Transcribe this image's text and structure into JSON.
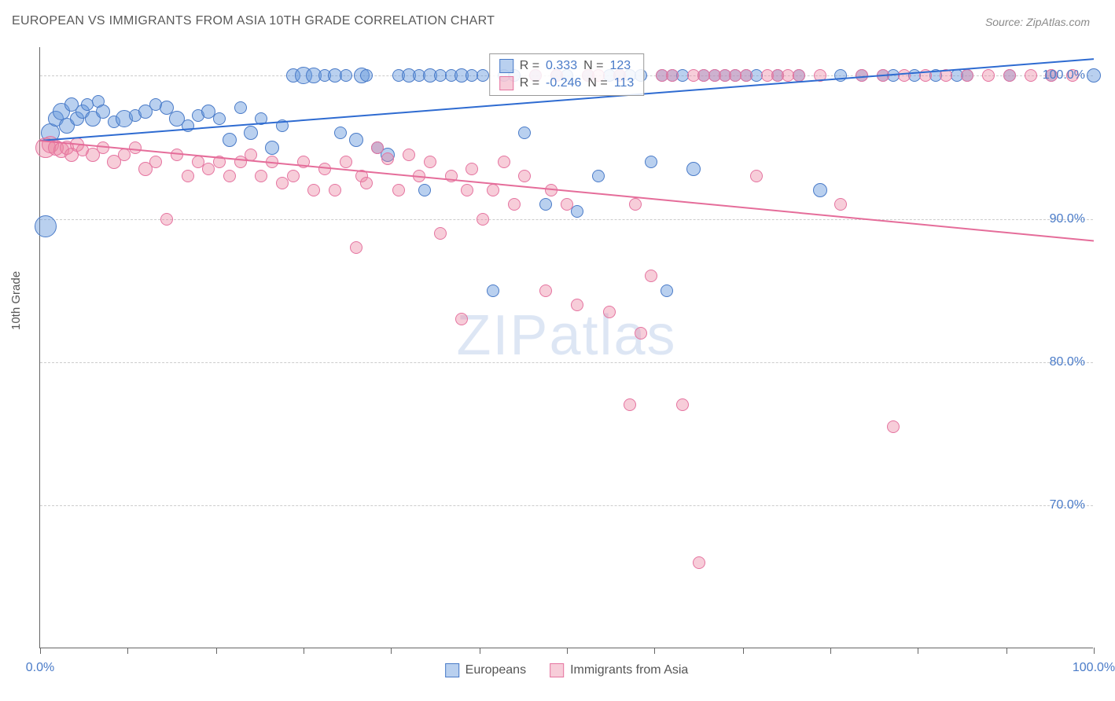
{
  "title": "EUROPEAN VS IMMIGRANTS FROM ASIA 10TH GRADE CORRELATION CHART",
  "source": "Source: ZipAtlas.com",
  "ylabel": "10th Grade",
  "watermark_zip": "ZIP",
  "watermark_atlas": "atlas",
  "chart": {
    "type": "scatter",
    "background_color": "#ffffff",
    "grid_color": "#cccccc",
    "axis_color": "#666666",
    "xlim": [
      0,
      100
    ],
    "ylim": [
      60,
      102
    ],
    "xticks": [
      0,
      8.3,
      16.7,
      25,
      33.3,
      41.7,
      50,
      58.3,
      66.7,
      75,
      83.3,
      91.7,
      100
    ],
    "xtick_labels": {
      "0": "0.0%",
      "100": "100.0%"
    },
    "yticks": [
      {
        "v": 100,
        "label": "100.0%"
      },
      {
        "v": 90,
        "label": "90.0%"
      },
      {
        "v": 80,
        "label": "80.0%"
      },
      {
        "v": 70,
        "label": "70.0%"
      }
    ],
    "series": [
      {
        "name": "Europeans",
        "fill": "rgba(100,150,220,0.45)",
        "stroke": "#4a7bc8",
        "trend_color": "#2e6bd1",
        "R_label": "R =",
        "R": "0.333",
        "N_label": "N =",
        "N": "123",
        "trend": {
          "x1": 0,
          "y1": 95.5,
          "x2": 100,
          "y2": 101.2
        },
        "points": [
          {
            "x": 0.5,
            "y": 89.5,
            "r": 14
          },
          {
            "x": 1,
            "y": 96,
            "r": 12
          },
          {
            "x": 1.5,
            "y": 97,
            "r": 10
          },
          {
            "x": 2,
            "y": 97.5,
            "r": 11
          },
          {
            "x": 2.5,
            "y": 96.5,
            "r": 10
          },
          {
            "x": 3,
            "y": 98,
            "r": 9
          },
          {
            "x": 3.5,
            "y": 97,
            "r": 9
          },
          {
            "x": 4,
            "y": 97.5,
            "r": 9
          },
          {
            "x": 4.5,
            "y": 98,
            "r": 8
          },
          {
            "x": 5,
            "y": 97,
            "r": 10
          },
          {
            "x": 5.5,
            "y": 98.2,
            "r": 8
          },
          {
            "x": 6,
            "y": 97.5,
            "r": 9
          },
          {
            "x": 7,
            "y": 96.8,
            "r": 8
          },
          {
            "x": 8,
            "y": 97,
            "r": 11
          },
          {
            "x": 9,
            "y": 97.2,
            "r": 8
          },
          {
            "x": 10,
            "y": 97.5,
            "r": 9
          },
          {
            "x": 11,
            "y": 98,
            "r": 8
          },
          {
            "x": 12,
            "y": 97.8,
            "r": 9
          },
          {
            "x": 13,
            "y": 97,
            "r": 10
          },
          {
            "x": 14,
            "y": 96.5,
            "r": 8
          },
          {
            "x": 15,
            "y": 97.2,
            "r": 8
          },
          {
            "x": 16,
            "y": 97.5,
            "r": 9
          },
          {
            "x": 17,
            "y": 97,
            "r": 8
          },
          {
            "x": 18,
            "y": 95.5,
            "r": 9
          },
          {
            "x": 19,
            "y": 97.8,
            "r": 8
          },
          {
            "x": 20,
            "y": 96,
            "r": 9
          },
          {
            "x": 21,
            "y": 97,
            "r": 8
          },
          {
            "x": 22,
            "y": 95,
            "r": 9
          },
          {
            "x": 23,
            "y": 96.5,
            "r": 8
          },
          {
            "x": 24,
            "y": 100,
            "r": 9
          },
          {
            "x": 25,
            "y": 100,
            "r": 11
          },
          {
            "x": 26,
            "y": 100,
            "r": 10
          },
          {
            "x": 27,
            "y": 100,
            "r": 8
          },
          {
            "x": 28,
            "y": 100,
            "r": 9
          },
          {
            "x": 28.5,
            "y": 96,
            "r": 8
          },
          {
            "x": 29,
            "y": 100,
            "r": 8
          },
          {
            "x": 30,
            "y": 95.5,
            "r": 9
          },
          {
            "x": 30.5,
            "y": 100,
            "r": 10
          },
          {
            "x": 31,
            "y": 100,
            "r": 8
          },
          {
            "x": 32,
            "y": 95,
            "r": 8
          },
          {
            "x": 33,
            "y": 94.5,
            "r": 9
          },
          {
            "x": 34,
            "y": 100,
            "r": 8
          },
          {
            "x": 35,
            "y": 100,
            "r": 9
          },
          {
            "x": 36,
            "y": 100,
            "r": 8
          },
          {
            "x": 36.5,
            "y": 92,
            "r": 8
          },
          {
            "x": 37,
            "y": 100,
            "r": 9
          },
          {
            "x": 38,
            "y": 100,
            "r": 8
          },
          {
            "x": 39,
            "y": 100,
            "r": 8
          },
          {
            "x": 40,
            "y": 100,
            "r": 9
          },
          {
            "x": 41,
            "y": 100,
            "r": 8
          },
          {
            "x": 42,
            "y": 100,
            "r": 8
          },
          {
            "x": 43,
            "y": 85,
            "r": 8
          },
          {
            "x": 44,
            "y": 100,
            "r": 8
          },
          {
            "x": 45,
            "y": 100,
            "r": 8
          },
          {
            "x": 46,
            "y": 96,
            "r": 8
          },
          {
            "x": 47,
            "y": 100,
            "r": 8
          },
          {
            "x": 48,
            "y": 91,
            "r": 8
          },
          {
            "x": 49,
            "y": 100,
            "r": 8
          },
          {
            "x": 50,
            "y": 100,
            "r": 8
          },
          {
            "x": 51,
            "y": 90.5,
            "r": 8
          },
          {
            "x": 52,
            "y": 100,
            "r": 8
          },
          {
            "x": 53,
            "y": 93,
            "r": 8
          },
          {
            "x": 54,
            "y": 100,
            "r": 8
          },
          {
            "x": 55,
            "y": 100,
            "r": 8
          },
          {
            "x": 56,
            "y": 100,
            "r": 8
          },
          {
            "x": 57,
            "y": 100,
            "r": 8
          },
          {
            "x": 58,
            "y": 94,
            "r": 8
          },
          {
            "x": 59,
            "y": 100,
            "r": 8
          },
          {
            "x": 59.5,
            "y": 85,
            "r": 8
          },
          {
            "x": 60,
            "y": 100,
            "r": 8
          },
          {
            "x": 61,
            "y": 100,
            "r": 8
          },
          {
            "x": 62,
            "y": 93.5,
            "r": 9
          },
          {
            "x": 63,
            "y": 100,
            "r": 8
          },
          {
            "x": 64,
            "y": 100,
            "r": 8
          },
          {
            "x": 65,
            "y": 100,
            "r": 8
          },
          {
            "x": 66,
            "y": 100,
            "r": 8
          },
          {
            "x": 67,
            "y": 100,
            "r": 8
          },
          {
            "x": 68,
            "y": 100,
            "r": 8
          },
          {
            "x": 70,
            "y": 100,
            "r": 8
          },
          {
            "x": 72,
            "y": 100,
            "r": 8
          },
          {
            "x": 74,
            "y": 92,
            "r": 9
          },
          {
            "x": 76,
            "y": 100,
            "r": 8
          },
          {
            "x": 78,
            "y": 100,
            "r": 8
          },
          {
            "x": 80,
            "y": 100,
            "r": 8
          },
          {
            "x": 81,
            "y": 100,
            "r": 8
          },
          {
            "x": 83,
            "y": 100,
            "r": 8
          },
          {
            "x": 85,
            "y": 100,
            "r": 8
          },
          {
            "x": 87,
            "y": 100,
            "r": 8
          },
          {
            "x": 88,
            "y": 100,
            "r": 8
          },
          {
            "x": 92,
            "y": 100,
            "r": 8
          },
          {
            "x": 96,
            "y": 100,
            "r": 8
          },
          {
            "x": 100,
            "y": 100,
            "r": 9
          }
        ]
      },
      {
        "name": "Immigrants from Asia",
        "fill": "rgba(235,130,160,0.4)",
        "stroke": "#e574a0",
        "trend_color": "#e56d9a",
        "R_label": "R =",
        "R": "-0.246",
        "N_label": "N =",
        "N": "113",
        "trend": {
          "x1": 0,
          "y1": 95.5,
          "x2": 100,
          "y2": 88.5
        },
        "points": [
          {
            "x": 0.5,
            "y": 95,
            "r": 13
          },
          {
            "x": 1,
            "y": 95.2,
            "r": 11
          },
          {
            "x": 1.5,
            "y": 95,
            "r": 10
          },
          {
            "x": 2,
            "y": 94.8,
            "r": 10
          },
          {
            "x": 2.5,
            "y": 95,
            "r": 9
          },
          {
            "x": 3,
            "y": 94.5,
            "r": 9
          },
          {
            "x": 3.5,
            "y": 95.2,
            "r": 9
          },
          {
            "x": 4,
            "y": 94.8,
            "r": 8
          },
          {
            "x": 5,
            "y": 94.5,
            "r": 9
          },
          {
            "x": 6,
            "y": 95,
            "r": 8
          },
          {
            "x": 7,
            "y": 94,
            "r": 9
          },
          {
            "x": 8,
            "y": 94.5,
            "r": 8
          },
          {
            "x": 9,
            "y": 95,
            "r": 8
          },
          {
            "x": 10,
            "y": 93.5,
            "r": 9
          },
          {
            "x": 11,
            "y": 94,
            "r": 8
          },
          {
            "x": 12,
            "y": 90,
            "r": 8
          },
          {
            "x": 13,
            "y": 94.5,
            "r": 8
          },
          {
            "x": 14,
            "y": 93,
            "r": 8
          },
          {
            "x": 15,
            "y": 94,
            "r": 8
          },
          {
            "x": 16,
            "y": 93.5,
            "r": 8
          },
          {
            "x": 17,
            "y": 94,
            "r": 8
          },
          {
            "x": 18,
            "y": 93,
            "r": 8
          },
          {
            "x": 19,
            "y": 94,
            "r": 8
          },
          {
            "x": 20,
            "y": 94.5,
            "r": 8
          },
          {
            "x": 21,
            "y": 93,
            "r": 8
          },
          {
            "x": 22,
            "y": 94,
            "r": 8
          },
          {
            "x": 23,
            "y": 92.5,
            "r": 8
          },
          {
            "x": 24,
            "y": 93,
            "r": 8
          },
          {
            "x": 25,
            "y": 94,
            "r": 8
          },
          {
            "x": 26,
            "y": 92,
            "r": 8
          },
          {
            "x": 27,
            "y": 93.5,
            "r": 8
          },
          {
            "x": 28,
            "y": 92,
            "r": 8
          },
          {
            "x": 29,
            "y": 94,
            "r": 8
          },
          {
            "x": 30,
            "y": 88,
            "r": 8
          },
          {
            "x": 30.5,
            "y": 93,
            "r": 8
          },
          {
            "x": 31,
            "y": 92.5,
            "r": 8
          },
          {
            "x": 32,
            "y": 95,
            "r": 8
          },
          {
            "x": 33,
            "y": 94.2,
            "r": 8
          },
          {
            "x": 34,
            "y": 92,
            "r": 8
          },
          {
            "x": 35,
            "y": 94.5,
            "r": 8
          },
          {
            "x": 36,
            "y": 93,
            "r": 8
          },
          {
            "x": 37,
            "y": 94,
            "r": 8
          },
          {
            "x": 38,
            "y": 89,
            "r": 8
          },
          {
            "x": 39,
            "y": 93,
            "r": 8
          },
          {
            "x": 40,
            "y": 83,
            "r": 8
          },
          {
            "x": 40.5,
            "y": 92,
            "r": 8
          },
          {
            "x": 41,
            "y": 93.5,
            "r": 8
          },
          {
            "x": 42,
            "y": 90,
            "r": 8
          },
          {
            "x": 43,
            "y": 92,
            "r": 8
          },
          {
            "x": 44,
            "y": 94,
            "r": 8
          },
          {
            "x": 45,
            "y": 91,
            "r": 8
          },
          {
            "x": 46,
            "y": 93,
            "r": 8
          },
          {
            "x": 47,
            "y": 100,
            "r": 8
          },
          {
            "x": 48,
            "y": 85,
            "r": 8
          },
          {
            "x": 48.5,
            "y": 92,
            "r": 8
          },
          {
            "x": 49,
            "y": 100,
            "r": 8
          },
          {
            "x": 50,
            "y": 91,
            "r": 8
          },
          {
            "x": 51,
            "y": 84,
            "r": 8
          },
          {
            "x": 52,
            "y": 100,
            "r": 8
          },
          {
            "x": 53,
            "y": 100,
            "r": 8
          },
          {
            "x": 54,
            "y": 83.5,
            "r": 8
          },
          {
            "x": 55,
            "y": 100,
            "r": 8
          },
          {
            "x": 56,
            "y": 77,
            "r": 8
          },
          {
            "x": 56.5,
            "y": 91,
            "r": 8
          },
          {
            "x": 57,
            "y": 82,
            "r": 8
          },
          {
            "x": 58,
            "y": 86,
            "r": 8
          },
          {
            "x": 59,
            "y": 100,
            "r": 8
          },
          {
            "x": 60,
            "y": 100,
            "r": 8
          },
          {
            "x": 61,
            "y": 77,
            "r": 8
          },
          {
            "x": 62,
            "y": 100,
            "r": 8
          },
          {
            "x": 62.5,
            "y": 66,
            "r": 8
          },
          {
            "x": 63,
            "y": 100,
            "r": 8
          },
          {
            "x": 64,
            "y": 100,
            "r": 8
          },
          {
            "x": 65,
            "y": 100,
            "r": 8
          },
          {
            "x": 66,
            "y": 100,
            "r": 8
          },
          {
            "x": 67,
            "y": 100,
            "r": 8
          },
          {
            "x": 68,
            "y": 93,
            "r": 8
          },
          {
            "x": 69,
            "y": 100,
            "r": 8
          },
          {
            "x": 70,
            "y": 100,
            "r": 8
          },
          {
            "x": 71,
            "y": 100,
            "r": 8
          },
          {
            "x": 72,
            "y": 100,
            "r": 8
          },
          {
            "x": 74,
            "y": 100,
            "r": 8
          },
          {
            "x": 76,
            "y": 91,
            "r": 8
          },
          {
            "x": 78,
            "y": 100,
            "r": 8
          },
          {
            "x": 80,
            "y": 100,
            "r": 8
          },
          {
            "x": 81,
            "y": 75.5,
            "r": 8
          },
          {
            "x": 82,
            "y": 100,
            "r": 8
          },
          {
            "x": 84,
            "y": 100,
            "r": 8
          },
          {
            "x": 86,
            "y": 100,
            "r": 8
          },
          {
            "x": 88,
            "y": 100,
            "r": 8
          },
          {
            "x": 90,
            "y": 100,
            "r": 8
          },
          {
            "x": 92,
            "y": 100,
            "r": 8
          },
          {
            "x": 94,
            "y": 100,
            "r": 8
          },
          {
            "x": 96,
            "y": 100,
            "r": 8
          },
          {
            "x": 98,
            "y": 100,
            "r": 8
          }
        ]
      }
    ]
  },
  "bottom_legend": [
    {
      "label": "Europeans",
      "fill": "rgba(100,150,220,0.45)",
      "stroke": "#4a7bc8"
    },
    {
      "label": "Immigrants from Asia",
      "fill": "rgba(235,130,160,0.4)",
      "stroke": "#e574a0"
    }
  ]
}
